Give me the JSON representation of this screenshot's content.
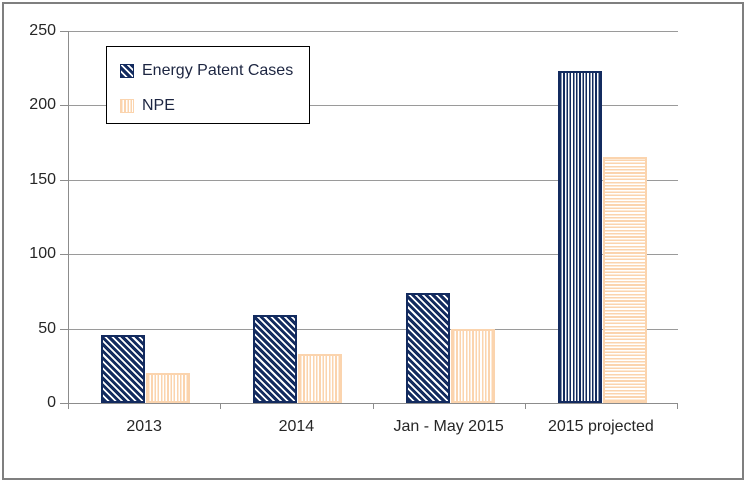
{
  "chart_data": {
    "type": "bar",
    "categories": [
      "2013",
      "2014",
      "Jan - May 2015",
      "2015 projected"
    ],
    "series": [
      {
        "name": "Energy Patent Cases",
        "values": [
          46,
          59,
          74,
          223
        ],
        "color": "#132B5F",
        "pattern_fills": [
          "diagonal",
          "diagonal",
          "diagonal",
          "vertical"
        ]
      },
      {
        "name": "NPE",
        "values": [
          20,
          33,
          50,
          165
        ],
        "color": "#FBD4AE",
        "pattern_fills": [
          "vertical",
          "vertical",
          "vertical",
          "horizontal"
        ]
      }
    ],
    "ylim": [
      0,
      250
    ],
    "yticks": [
      0,
      50,
      100,
      150,
      200,
      250
    ],
    "grid": true,
    "legend_position": "top-left"
  },
  "colors": {
    "axis": "#8C8C8C",
    "gridline": "#9A9A9A",
    "frame_border": "#7F7F7F",
    "tick_label": "#262626",
    "legend_text": "#1C2541",
    "legend_border": "#000000",
    "background": "#FFFFFF"
  }
}
